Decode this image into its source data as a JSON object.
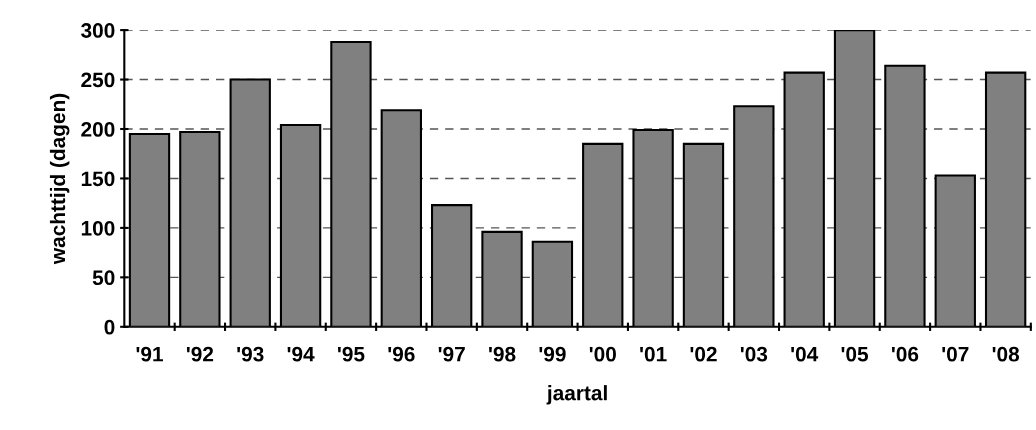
{
  "chart_data": {
    "type": "bar",
    "xlabel": "jaartal",
    "ylabel": "wachttijd (dagen)",
    "categories": [
      "'91",
      "'92",
      "'93",
      "'94",
      "'95",
      "'96",
      "'97",
      "'98",
      "'99",
      "'00",
      "'01",
      "'02",
      "'03",
      "'04",
      "'05",
      "'06",
      "'07",
      "'08"
    ],
    "values": [
      195,
      197,
      250,
      204,
      288,
      219,
      123,
      96,
      86,
      185,
      199,
      185,
      223,
      257,
      300,
      264,
      153,
      257
    ],
    "color": "#808080",
    "ylim": [
      0,
      300
    ],
    "yticks": [
      0,
      50,
      100,
      150,
      200,
      250,
      300
    ],
    "grid": "y",
    "legend": false
  }
}
